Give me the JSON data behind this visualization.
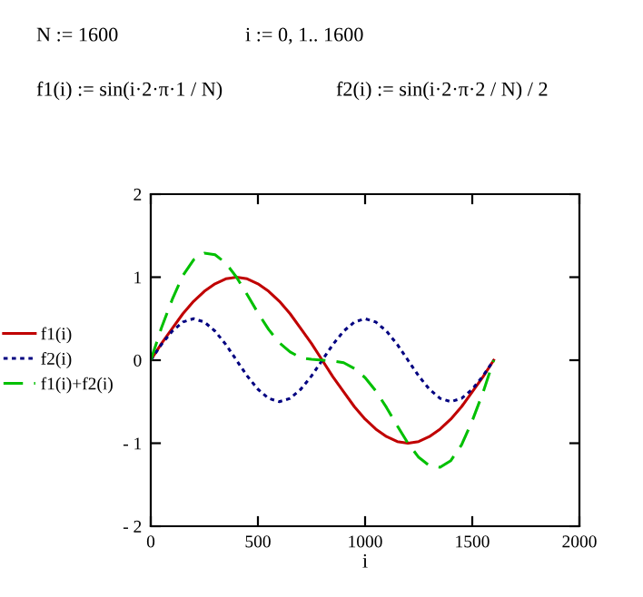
{
  "chart_data": {
    "type": "line",
    "annotations": [
      "N := 1600",
      "i := 0, 1.. 1600",
      "f1(i) := sin(i·2·π·1 / N)",
      "f2(i) := sin(i·2·π·2 / N) / 2"
    ],
    "xlabel": "i",
    "x": [
      0,
      50,
      100,
      150,
      200,
      250,
      300,
      350,
      400,
      450,
      500,
      550,
      600,
      650,
      700,
      750,
      800,
      850,
      900,
      950,
      1000,
      1050,
      1100,
      1150,
      1200,
      1250,
      1300,
      1350,
      1400,
      1450,
      1500,
      1550,
      1600
    ],
    "series": [
      {
        "name": "f1(i)",
        "color": "#c00000",
        "line_style": "solid",
        "values": [
          0,
          0.2,
          0.38,
          0.56,
          0.71,
          0.83,
          0.92,
          0.98,
          1,
          0.98,
          0.92,
          0.83,
          0.71,
          0.56,
          0.38,
          0.2,
          0,
          -0.2,
          -0.38,
          -0.56,
          -0.71,
          -0.83,
          -0.92,
          -0.98,
          -1,
          -0.98,
          -0.92,
          -0.83,
          -0.71,
          -0.56,
          -0.38,
          -0.2,
          0
        ]
      },
      {
        "name": "f2(i)",
        "color": "#000080",
        "line_style": "dotted",
        "values": [
          0,
          0.19,
          0.35,
          0.46,
          0.5,
          0.46,
          0.35,
          0.19,
          0,
          -0.19,
          -0.35,
          -0.46,
          -0.5,
          -0.46,
          -0.35,
          -0.19,
          0,
          0.19,
          0.35,
          0.46,
          0.5,
          0.46,
          0.35,
          0.19,
          0,
          -0.19,
          -0.35,
          -0.46,
          -0.5,
          -0.46,
          -0.35,
          -0.19,
          0
        ]
      },
      {
        "name": "f1(i)+f2(i)",
        "color": "#00c000",
        "line_style": "dashed",
        "values": [
          0,
          0.39,
          0.73,
          1.02,
          1.21,
          1.29,
          1.27,
          1.17,
          1,
          0.79,
          0.57,
          0.37,
          0.21,
          0.1,
          0.03,
          0.01,
          0,
          -0.01,
          -0.03,
          -0.1,
          -0.21,
          -0.37,
          -0.57,
          -0.79,
          -1,
          -1.17,
          -1.27,
          -1.29,
          -1.21,
          -1.02,
          -0.73,
          -0.39,
          0
        ]
      }
    ],
    "xlim": [
      0,
      2000
    ],
    "xticks": [
      0,
      500,
      1000,
      1500,
      2000
    ],
    "ylim": [
      -2,
      2
    ],
    "yticks": [
      {
        "value": -2,
        "label": "- 2"
      },
      {
        "value": -1,
        "label": "- 1"
      },
      0,
      1,
      2
    ],
    "legend": "left",
    "grid": false,
    "marker": "none"
  }
}
